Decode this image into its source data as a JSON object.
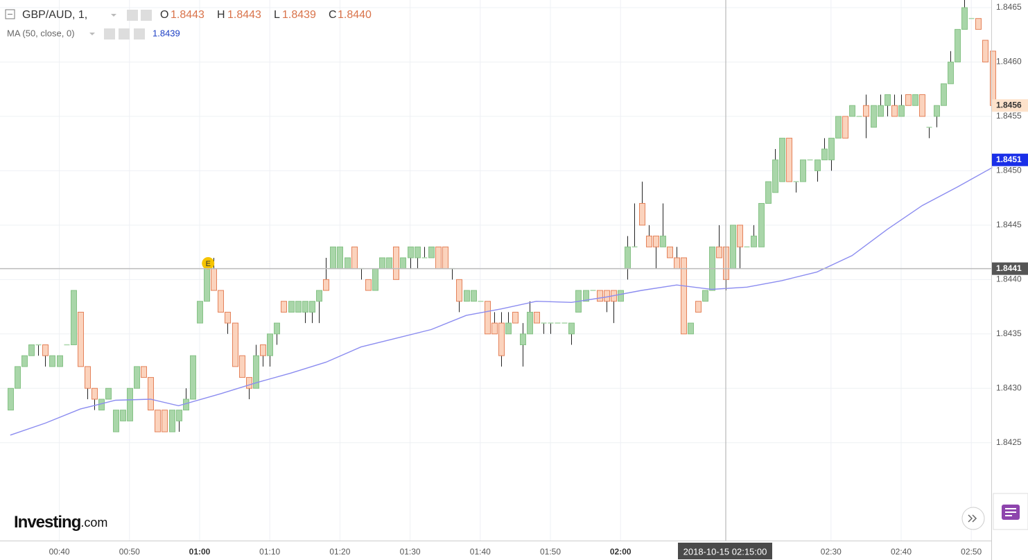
{
  "chart_data": {
    "type": "candlestick",
    "symbol": "GBP/AUD, 1,",
    "readout": {
      "o": "O",
      "open": "1.8443",
      "h": "H",
      "high": "1.8443",
      "l": "L",
      "low": "1.8439",
      "c": "C",
      "close": "1.8440"
    },
    "up_color": "#a9d6a9",
    "down_color": "#fbd3bd",
    "ylim": [
      1.8416,
      1.84657
    ],
    "yticks": [
      1.8425,
      {
        "value": 1.843,
        "label": "1.8430"
      },
      1.8435,
      {
        "value": 1.844,
        "label": "1.8440"
      },
      1.8445,
      {
        "value": 1.845,
        "label": "1.8450"
      },
      1.8455,
      {
        "value": 1.846,
        "label": "1.8460"
      },
      1.8465
    ],
    "xticks": [
      "00:40",
      "00:50",
      "01:00",
      "01:10",
      "01:20",
      "01:30",
      "01:40",
      "01:50",
      "02:00",
      "02:30",
      "02:40",
      "02:50"
    ],
    "grid": true,
    "x": [
      "00:33",
      "00:34",
      "00:35",
      "00:36",
      "00:37",
      "00:38",
      "00:39",
      "00:40",
      "00:41",
      "00:42",
      "00:43",
      "00:44",
      "00:45",
      "00:46",
      "00:47",
      "00:48",
      "00:49",
      "00:50",
      "00:51",
      "00:52",
      "00:53",
      "00:54",
      "00:55",
      "00:56",
      "00:57",
      "00:58",
      "00:59",
      "01:00",
      "01:01",
      "01:02",
      "01:03",
      "01:04",
      "01:05",
      "01:06",
      "01:07",
      "01:08",
      "01:09",
      "01:10",
      "01:11",
      "01:12",
      "01:13",
      "01:14",
      "01:15",
      "01:16",
      "01:17",
      "01:18",
      "01:19",
      "01:20",
      "01:21",
      "01:22",
      "01:23",
      "01:24",
      "01:25",
      "01:26",
      "01:27",
      "01:28",
      "01:29",
      "01:30",
      "01:31",
      "01:32",
      "01:33",
      "01:34",
      "01:35",
      "01:36",
      "01:37",
      "01:38",
      "01:39",
      "01:40",
      "01:41",
      "01:42",
      "01:43",
      "01:44",
      "01:45",
      "01:46",
      "01:47",
      "01:48",
      "01:49",
      "01:50",
      "01:51",
      "01:52",
      "01:53",
      "01:54",
      "01:55",
      "01:56",
      "01:57",
      "01:58",
      "01:59",
      "02:00",
      "02:01",
      "02:02",
      "02:03",
      "02:04",
      "02:05",
      "02:06",
      "02:07",
      "02:08",
      "02:09",
      "02:10",
      "02:11",
      "02:12",
      "02:13",
      "02:14",
      "02:15",
      "02:16",
      "02:17",
      "02:18",
      "02:19",
      "02:20",
      "02:21",
      "02:22",
      "02:23",
      "02:24",
      "02:25",
      "02:26",
      "02:27",
      "02:28",
      "02:29",
      "02:30",
      "02:31",
      "02:32",
      "02:33",
      "02:34",
      "02:35",
      "02:36",
      "02:37",
      "02:38",
      "02:39",
      "02:40",
      "02:41",
      "02:42",
      "02:43",
      "02:44",
      "02:45",
      "02:46",
      "02:47",
      "02:48",
      "02:49",
      "02:50",
      "02:51",
      "02:52",
      "02:53"
    ],
    "open": [
      1.8428,
      1.843,
      1.8432,
      1.8433,
      1.8434,
      1.8434,
      1.8432,
      1.8432,
      1.8434,
      1.8434,
      1.8437,
      1.8432,
      1.843,
      1.8428,
      1.8429,
      1.8426,
      1.8427,
      1.8427,
      1.843,
      1.8432,
      1.8431,
      1.8428,
      1.8428,
      1.8426,
      1.8427,
      1.8428,
      1.8429,
      1.8436,
      1.8438,
      1.8441,
      1.8439,
      1.8437,
      1.8436,
      1.8433,
      1.8431,
      1.843,
      1.8434,
      1.8433,
      1.8435,
      1.8438,
      1.8437,
      1.8437,
      1.8437,
      1.8437,
      1.8438,
      1.844,
      1.8441,
      1.8441,
      1.8441,
      1.8443,
      1.8441,
      1.844,
      1.8439,
      1.8441,
      1.8441,
      1.8443,
      1.8441,
      1.8442,
      1.8442,
      1.8442,
      1.8442,
      1.8443,
      1.8443,
      1.8441,
      1.844,
      1.8438,
      1.8438,
      1.8438,
      1.8438,
      1.8436,
      1.8436,
      1.8435,
      1.8437,
      1.8434,
      1.8435,
      1.8437,
      1.8436,
      1.8436,
      1.8436,
      1.8436,
      1.8435,
      1.8437,
      1.8438,
      1.8439,
      1.8439,
      1.8439,
      1.8439,
      1.8438,
      1.8441,
      1.8443,
      1.8447,
      1.8444,
      1.8444,
      1.8443,
      1.8443,
      1.8442,
      1.8442,
      1.8435,
      1.8438,
      1.8438,
      1.8439,
      1.8443,
      1.8443,
      1.8441,
      1.8445,
      1.8443,
      1.8443,
      1.8443,
      1.8447,
      1.8448,
      1.8449,
      1.8453,
      1.8449,
      1.8449,
      1.8451,
      1.845,
      1.8451,
      1.8451,
      1.8453,
      1.8455,
      1.8455,
      1.8455,
      1.8456,
      1.8454,
      1.8455,
      1.8456,
      1.8456,
      1.8455,
      1.8457,
      1.8456,
      1.8457,
      1.8454,
      1.8455,
      1.8456,
      1.8458,
      1.846,
      1.8463,
      1.8464,
      1.8464,
      1.8462,
      1.8461
    ],
    "high": [
      1.843,
      1.8432,
      1.8433,
      1.8434,
      1.8434,
      1.8434,
      1.8433,
      1.8433,
      1.8434,
      1.8439,
      1.8437,
      1.8432,
      1.843,
      1.8429,
      1.843,
      1.8428,
      1.8428,
      1.843,
      1.8432,
      1.8432,
      1.8431,
      1.8428,
      1.8428,
      1.8428,
      1.8428,
      1.843,
      1.8433,
      1.8438,
      1.8441,
      1.8442,
      1.8439,
      1.8437,
      1.8436,
      1.8433,
      1.8431,
      1.8434,
      1.8434,
      1.8435,
      1.8436,
      1.8438,
      1.8438,
      1.8438,
      1.8438,
      1.8438,
      1.8439,
      1.8442,
      1.8443,
      1.8443,
      1.8442,
      1.8443,
      1.8441,
      1.844,
      1.8441,
      1.8442,
      1.8442,
      1.8443,
      1.8442,
      1.8443,
      1.8443,
      1.8443,
      1.8443,
      1.8443,
      1.8443,
      1.8441,
      1.844,
      1.8439,
      1.8439,
      1.8438,
      1.8438,
      1.8437,
      1.8437,
      1.8437,
      1.8437,
      1.8436,
      1.8438,
      1.8437,
      1.8436,
      1.8436,
      1.8436,
      1.8436,
      1.8436,
      1.8439,
      1.8439,
      1.8439,
      1.8439,
      1.8439,
      1.8439,
      1.8439,
      1.8444,
      1.8447,
      1.8449,
      1.8445,
      1.8444,
      1.8447,
      1.8443,
      1.8443,
      1.8442,
      1.8436,
      1.8438,
      1.8439,
      1.8443,
      1.8445,
      1.8443,
      1.8445,
      1.8445,
      1.8443,
      1.8445,
      1.8447,
      1.8449,
      1.8452,
      1.8453,
      1.8453,
      1.8449,
      1.8451,
      1.8451,
      1.8451,
      1.8453,
      1.8453,
      1.8455,
      1.8455,
      1.8456,
      1.8455,
      1.8457,
      1.8456,
      1.8457,
      1.8457,
      1.8457,
      1.8457,
      1.8457,
      1.8457,
      1.8457,
      1.8454,
      1.8456,
      1.8458,
      1.8461,
      1.8463,
      1.8466,
      1.8464,
      1.8464,
      1.8462,
      1.8461
    ],
    "low": [
      1.8428,
      1.843,
      1.8432,
      1.8433,
      1.8433,
      1.8432,
      1.8432,
      1.8432,
      1.8434,
      1.8434,
      1.8432,
      1.8429,
      1.8428,
      1.8428,
      1.8429,
      1.8426,
      1.8427,
      1.8427,
      1.843,
      1.8431,
      1.8428,
      1.8426,
      1.8426,
      1.8426,
      1.8426,
      1.8428,
      1.8429,
      1.8436,
      1.8438,
      1.8439,
      1.8437,
      1.8435,
      1.8432,
      1.8431,
      1.8429,
      1.843,
      1.8432,
      1.8432,
      1.8434,
      1.8437,
      1.8437,
      1.8437,
      1.8436,
      1.8436,
      1.8436,
      1.8439,
      1.8441,
      1.8441,
      1.8441,
      1.8441,
      1.844,
      1.8439,
      1.8439,
      1.8441,
      1.8441,
      1.844,
      1.8441,
      1.8441,
      1.8441,
      1.8442,
      1.8442,
      1.8441,
      1.8441,
      1.844,
      1.8437,
      1.8438,
      1.8438,
      1.8438,
      1.8435,
      1.8435,
      1.8432,
      1.8435,
      1.8436,
      1.8432,
      1.8435,
      1.8436,
      1.8435,
      1.8435,
      1.8436,
      1.8436,
      1.8434,
      1.8437,
      1.8438,
      1.8439,
      1.8438,
      1.8437,
      1.8436,
      1.8438,
      1.844,
      1.8443,
      1.8445,
      1.8443,
      1.8441,
      1.8443,
      1.8442,
      1.8441,
      1.8435,
      1.8435,
      1.8437,
      1.8438,
      1.8439,
      1.8442,
      1.8439,
      1.8441,
      1.8441,
      1.8443,
      1.8443,
      1.8443,
      1.8447,
      1.8448,
      1.8449,
      1.8449,
      1.8448,
      1.8449,
      1.8451,
      1.8449,
      1.8451,
      1.845,
      1.8453,
      1.8453,
      1.8455,
      1.8455,
      1.8453,
      1.8454,
      1.8455,
      1.8455,
      1.8455,
      1.8455,
      1.8456,
      1.8456,
      1.8455,
      1.8453,
      1.8454,
      1.8456,
      1.8458,
      1.846,
      1.8463,
      1.8464,
      1.8463,
      1.846,
      1.8456
    ],
    "close": [
      1.843,
      1.8432,
      1.8433,
      1.8434,
      1.8434,
      1.8433,
      1.8433,
      1.8433,
      1.8434,
      1.8439,
      1.8432,
      1.843,
      1.8429,
      1.8429,
      1.843,
      1.8428,
      1.8428,
      1.843,
      1.8432,
      1.8431,
      1.8428,
      1.8426,
      1.8426,
      1.8428,
      1.8428,
      1.8429,
      1.8433,
      1.8438,
      1.8441,
      1.8439,
      1.8437,
      1.8436,
      1.8432,
      1.8431,
      1.843,
      1.8433,
      1.8433,
      1.8435,
      1.8436,
      1.8437,
      1.8438,
      1.8438,
      1.8438,
      1.8438,
      1.8439,
      1.8439,
      1.8443,
      1.8443,
      1.8442,
      1.8441,
      1.8441,
      1.8439,
      1.8441,
      1.8442,
      1.8442,
      1.844,
      1.8442,
      1.8443,
      1.8443,
      1.8442,
      1.8443,
      1.8441,
      1.8441,
      1.8441,
      1.8438,
      1.8439,
      1.8439,
      1.8438,
      1.8435,
      1.8435,
      1.8433,
      1.8436,
      1.8436,
      1.8435,
      1.8437,
      1.8436,
      1.8436,
      1.8436,
      1.8436,
      1.8436,
      1.8436,
      1.8439,
      1.8439,
      1.8439,
      1.8438,
      1.8438,
      1.8438,
      1.8439,
      1.8443,
      1.8443,
      1.8445,
      1.8443,
      1.8443,
      1.8444,
      1.8442,
      1.8441,
      1.8435,
      1.8436,
      1.8437,
      1.8439,
      1.8443,
      1.8442,
      1.844,
      1.8445,
      1.8443,
      1.8443,
      1.8444,
      1.8447,
      1.8449,
      1.8451,
      1.8453,
      1.8449,
      1.8449,
      1.8451,
      1.8451,
      1.8451,
      1.8452,
      1.8453,
      1.8455,
      1.8453,
      1.8456,
      1.8455,
      1.8455,
      1.8456,
      1.8456,
      1.8457,
      1.8455,
      1.8456,
      1.8456,
      1.8457,
      1.8455,
      1.8454,
      1.8456,
      1.8458,
      1.846,
      1.8463,
      1.8465,
      1.8464,
      1.8463,
      1.846,
      1.8456
    ],
    "ma": {
      "name": "MA (50, close, 0)",
      "readout": "1.8439",
      "color": "#8b8cf0",
      "x": [
        "00:33",
        "00:38",
        "00:43",
        "00:48",
        "00:53",
        "00:57",
        "01:03",
        "01:08",
        "01:13",
        "01:18",
        "01:23",
        "01:28",
        "01:33",
        "01:38",
        "01:43",
        "01:48",
        "01:53",
        "01:58",
        "02:03",
        "02:08",
        "02:13",
        "02:18",
        "02:23",
        "02:28",
        "02:33",
        "02:38",
        "02:43",
        "02:48",
        "02:53"
      ],
      "values": [
        1.84257,
        1.84268,
        1.84281,
        1.84289,
        1.8429,
        1.84284,
        1.84295,
        1.84305,
        1.84314,
        1.84324,
        1.84338,
        1.84346,
        1.84354,
        1.84367,
        1.84373,
        1.8438,
        1.84379,
        1.84384,
        1.8439,
        1.84395,
        1.84391,
        1.84393,
        1.84399,
        1.84407,
        1.84422,
        1.84446,
        1.84468,
        1.84485,
        1.84503
      ]
    },
    "last_price": 1.8456,
    "ma_price": 1.8451,
    "crosshair": {
      "label": "2018-10-15 02:15:00",
      "price": 1.8441
    },
    "event": {
      "x": "01:02",
      "label": "E"
    }
  },
  "branding": {
    "name": "Investing",
    "suffix": ".com"
  }
}
